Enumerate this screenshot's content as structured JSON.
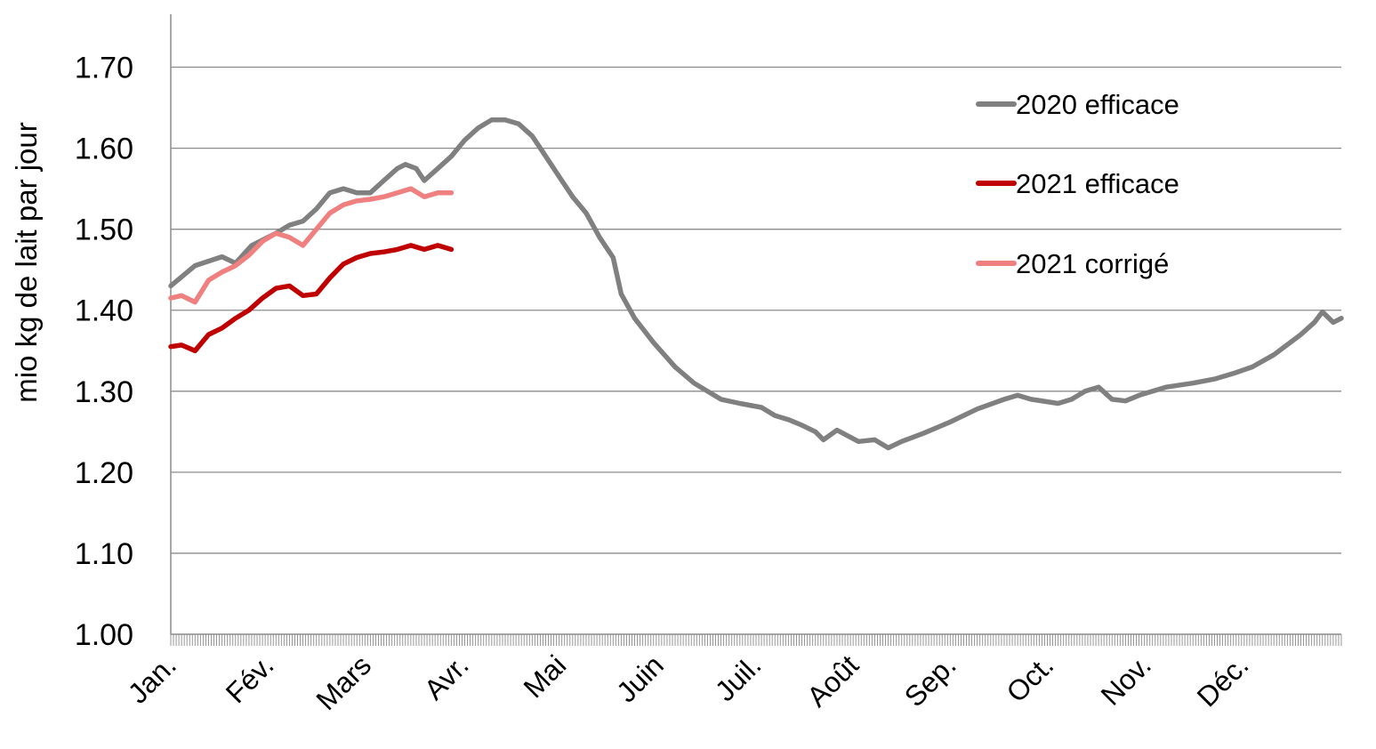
{
  "chart_data": {
    "type": "line",
    "title": "",
    "xlabel": "",
    "ylabel": "mio kg de lait par jour",
    "ylim": [
      1.0,
      1.75
    ],
    "yticks": [
      "1.00",
      "1.10",
      "1.20",
      "1.30",
      "1.40",
      "1.50",
      "1.60",
      "1.70"
    ],
    "categories": [
      "Jan.",
      "Fév.",
      "Mars",
      "Avr.",
      "Mai",
      "Juin",
      "Juil.",
      "Août",
      "Sep.",
      "Oct.",
      "Nov.",
      "Déc."
    ],
    "grid": true,
    "legend_position": "top-right",
    "series": [
      {
        "name": "2020 efficace",
        "color": "#808080",
        "points": [
          [
            1,
            1.43
          ],
          [
            10,
            1.455
          ],
          [
            20,
            1.466
          ],
          [
            25,
            1.458
          ],
          [
            31,
            1.48
          ],
          [
            40,
            1.495
          ],
          [
            45,
            1.505
          ],
          [
            50,
            1.51
          ],
          [
            55,
            1.525
          ],
          [
            60,
            1.545
          ],
          [
            65,
            1.55
          ],
          [
            70,
            1.545
          ],
          [
            75,
            1.545
          ],
          [
            80,
            1.56
          ],
          [
            85,
            1.575
          ],
          [
            88,
            1.58
          ],
          [
            92,
            1.575
          ],
          [
            95,
            1.56
          ],
          [
            100,
            1.575
          ],
          [
            105,
            1.59
          ],
          [
            110,
            1.61
          ],
          [
            115,
            1.625
          ],
          [
            120,
            1.635
          ],
          [
            125,
            1.635
          ],
          [
            130,
            1.63
          ],
          [
            135,
            1.615
          ],
          [
            140,
            1.59
          ],
          [
            145,
            1.565
          ],
          [
            150,
            1.54
          ],
          [
            155,
            1.52
          ],
          [
            160,
            1.49
          ],
          [
            165,
            1.465
          ],
          [
            168,
            1.42
          ],
          [
            173,
            1.39
          ],
          [
            180,
            1.36
          ],
          [
            188,
            1.33
          ],
          [
            195,
            1.31
          ],
          [
            200,
            1.3
          ],
          [
            205,
            1.29
          ],
          [
            212,
            1.285
          ],
          [
            220,
            1.28
          ],
          [
            225,
            1.27
          ],
          [
            230,
            1.265
          ],
          [
            235,
            1.258
          ],
          [
            240,
            1.25
          ],
          [
            243,
            1.24
          ],
          [
            248,
            1.252
          ],
          [
            252,
            1.245
          ],
          [
            256,
            1.238
          ],
          [
            262,
            1.24
          ],
          [
            267,
            1.23
          ],
          [
            272,
            1.238
          ],
          [
            280,
            1.248
          ],
          [
            290,
            1.262
          ],
          [
            300,
            1.278
          ],
          [
            310,
            1.29
          ],
          [
            315,
            1.295
          ],
          [
            320,
            1.29
          ],
          [
            330,
            1.285
          ],
          [
            335,
            1.29
          ],
          [
            340,
            1.3
          ],
          [
            345,
            1.305
          ],
          [
            350,
            1.29
          ],
          [
            355,
            1.288
          ],
          [
            360,
            1.295
          ],
          [
            370,
            1.305
          ],
          [
            380,
            1.31
          ],
          [
            388,
            1.315
          ],
          [
            395,
            1.322
          ],
          [
            402,
            1.33
          ],
          [
            410,
            1.345
          ],
          [
            420,
            1.37
          ],
          [
            425,
            1.385
          ],
          [
            428,
            1.398
          ],
          [
            432,
            1.385
          ],
          [
            435,
            1.39
          ]
        ]
      },
      {
        "name": "2021 efficace",
        "color": "#c00000",
        "points": [
          [
            1,
            1.355
          ],
          [
            5,
            1.357
          ],
          [
            10,
            1.35
          ],
          [
            15,
            1.37
          ],
          [
            20,
            1.378
          ],
          [
            25,
            1.39
          ],
          [
            30,
            1.4
          ],
          [
            35,
            1.415
          ],
          [
            40,
            1.427
          ],
          [
            45,
            1.43
          ],
          [
            50,
            1.418
          ],
          [
            55,
            1.42
          ],
          [
            60,
            1.44
          ],
          [
            65,
            1.457
          ],
          [
            70,
            1.465
          ],
          [
            75,
            1.47
          ],
          [
            80,
            1.472
          ],
          [
            85,
            1.475
          ],
          [
            90,
            1.48
          ],
          [
            95,
            1.475
          ],
          [
            100,
            1.48
          ],
          [
            105,
            1.475
          ]
        ]
      },
      {
        "name": "2021 corrigé",
        "color": "#f08080",
        "points": [
          [
            1,
            1.415
          ],
          [
            5,
            1.418
          ],
          [
            10,
            1.41
          ],
          [
            15,
            1.437
          ],
          [
            20,
            1.447
          ],
          [
            25,
            1.455
          ],
          [
            30,
            1.468
          ],
          [
            35,
            1.485
          ],
          [
            40,
            1.495
          ],
          [
            45,
            1.49
          ],
          [
            50,
            1.48
          ],
          [
            55,
            1.5
          ],
          [
            60,
            1.52
          ],
          [
            65,
            1.53
          ],
          [
            70,
            1.535
          ],
          [
            75,
            1.537
          ],
          [
            80,
            1.54
          ],
          [
            85,
            1.545
          ],
          [
            90,
            1.55
          ],
          [
            95,
            1.54
          ],
          [
            100,
            1.545
          ],
          [
            105,
            1.545
          ]
        ]
      }
    ]
  }
}
